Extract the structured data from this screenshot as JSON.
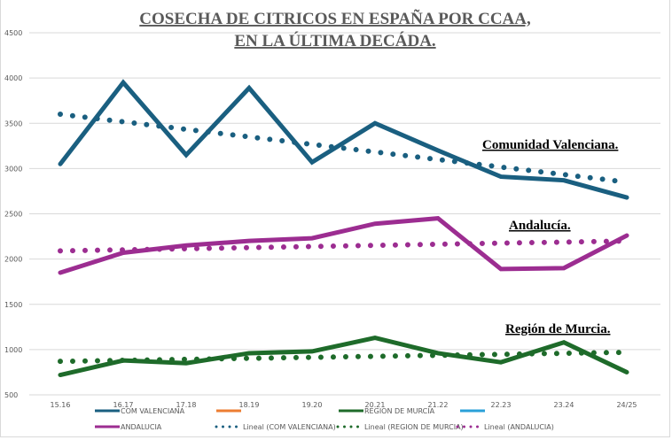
{
  "chart_data": {
    "type": "line",
    "title": [
      "COSECHA DE CITRICOS EN ESPAÑA POR CCAA,",
      "EN LA ÚLTIMA DECÁDA."
    ],
    "xlabel": "",
    "ylabel": "",
    "categories": [
      "15.16",
      "16.17",
      "17.18",
      "18.19",
      "19.20",
      "20.21",
      "21.22",
      "22.23",
      "23.24",
      "24/25"
    ],
    "ylim": [
      500,
      4500
    ],
    "yticks": [
      500,
      1000,
      1500,
      2000,
      2500,
      3000,
      3500,
      4000,
      4500
    ],
    "grid": true,
    "legend_position": "bottom",
    "series": [
      {
        "name": "COM VALENCIANA",
        "color": "#1a5f80",
        "values": [
          3050,
          3950,
          3150,
          3890,
          3070,
          3500,
          3200,
          2910,
          2870,
          2680
        ]
      },
      {
        "name": "ANDALUCIA",
        "color": "#9c2d91",
        "values": [
          1850,
          2070,
          2150,
          2200,
          2230,
          2390,
          2450,
          1890,
          1900,
          2260
        ]
      },
      {
        "name": "REGION DE MURCIA",
        "color": "#1e6b2a",
        "values": [
          720,
          880,
          850,
          960,
          980,
          1130,
          960,
          860,
          1080,
          750
        ]
      }
    ],
    "trendlines": [
      {
        "name": "Lineal (COM VALENCIANA)",
        "color": "#1a5f80",
        "start": 3600,
        "end": 2850
      },
      {
        "name": "Lineal (ANDALUCIA)",
        "color": "#9c2d91",
        "start": 2090,
        "end": 2200
      },
      {
        "name": "Lineal (REGION DE MURCIA)",
        "color": "#1e6b2a",
        "start": 870,
        "end": 970
      }
    ],
    "empty_series": [
      {
        "name": "",
        "color": "#ed7d31"
      },
      {
        "name": "",
        "color": "#2aa0d8"
      }
    ],
    "annotations": [
      "Comunidad  Valenciana.",
      "Andalucía.",
      "Región de Murcia."
    ]
  }
}
